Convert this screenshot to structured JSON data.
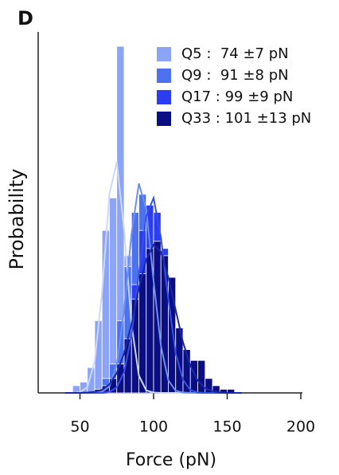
{
  "chart_data": {
    "type": "histogram",
    "panel_label": "D",
    "xlabel": "Force (pN)",
    "ylabel": "Probability",
    "xlim": [
      20,
      200
    ],
    "xticks": [
      50,
      100,
      150,
      200
    ],
    "ylim": [
      0,
      1
    ],
    "bins": [
      40,
      45,
      50,
      55,
      60,
      65,
      70,
      75,
      80,
      85,
      90,
      95,
      100,
      105,
      110,
      115,
      120,
      125,
      130,
      135,
      140,
      145,
      150,
      155,
      160
    ],
    "series": [
      {
        "name": "Q5 :  74 ±7 pN",
        "color": "#8ba4f5",
        "values": [
          0,
          0.02,
          0.03,
          0.07,
          0.2,
          0.45,
          0.54,
          0.96,
          0.38,
          0.1,
          0.03,
          0.01,
          0,
          0,
          0,
          0,
          0,
          0,
          0,
          0,
          0,
          0,
          0,
          0
        ],
        "curve": {
          "color": "#cdd8fa",
          "x": [
            40,
            45,
            50,
            55,
            60,
            65,
            70,
            75,
            80,
            85,
            90,
            95,
            100,
            105,
            110,
            115,
            120,
            125,
            130,
            135,
            140,
            145,
            150,
            155,
            160
          ],
          "values": [
            0,
            0,
            0.002,
            0.016,
            0.088,
            0.28,
            0.55,
            0.64,
            0.45,
            0.19,
            0.048,
            0.007,
            0.001,
            0,
            0,
            0,
            0,
            0,
            0,
            0,
            0,
            0,
            0,
            0,
            0
          ]
        }
      },
      {
        "name": "Q9 :  91 ±8 pN",
        "color": "#4d72ee",
        "values": [
          0,
          0,
          0,
          0,
          0.01,
          0.04,
          0.08,
          0.2,
          0.35,
          0.5,
          0.55,
          0.52,
          0.36,
          0.2,
          0.08,
          0.03,
          0.01,
          0,
          0,
          0,
          0,
          0,
          0,
          0
        ],
        "curve": {
          "color": "#6d8ff2",
          "x": [
            40,
            45,
            50,
            55,
            60,
            65,
            70,
            75,
            80,
            85,
            90,
            95,
            100,
            105,
            110,
            115,
            120,
            125,
            130,
            135,
            140,
            145,
            150,
            155,
            160
          ],
          "values": [
            0,
            0,
            0,
            0,
            0,
            0.003,
            0.018,
            0.078,
            0.23,
            0.44,
            0.58,
            0.51,
            0.31,
            0.13,
            0.035,
            0.006,
            0.001,
            0,
            0,
            0,
            0,
            0,
            0,
            0,
            0
          ]
        }
      },
      {
        "name": "Q17 : 99 ±9 pN",
        "color": "#2b3df0",
        "values": [
          0,
          0,
          0,
          0,
          0,
          0.01,
          0.03,
          0.06,
          0.15,
          0.3,
          0.45,
          0.52,
          0.5,
          0.4,
          0.28,
          0.15,
          0.07,
          0.02,
          0.01,
          0,
          0,
          0,
          0,
          0
        ],
        "curve": {
          "color": "#3550e6",
          "x": [
            40,
            45,
            50,
            55,
            60,
            65,
            70,
            75,
            80,
            85,
            90,
            95,
            100,
            105,
            110,
            115,
            120,
            125,
            130,
            135,
            140,
            145,
            150,
            155,
            160
          ],
          "values": [
            0,
            0,
            0,
            0,
            0,
            0,
            0.003,
            0.015,
            0.058,
            0.16,
            0.33,
            0.49,
            0.54,
            0.43,
            0.26,
            0.11,
            0.036,
            0.008,
            0.001,
            0,
            0,
            0,
            0,
            0,
            0
          ]
        }
      },
      {
        "name": "Q33 : 101 ±13 pN",
        "color": "#0a0e82",
        "values": [
          0,
          0,
          0,
          0,
          0.01,
          0.02,
          0.04,
          0.08,
          0.15,
          0.26,
          0.33,
          0.4,
          0.42,
          0.38,
          0.32,
          0.18,
          0.12,
          0.09,
          0.09,
          0.04,
          0.02,
          0.01,
          0.01,
          0
        ],
        "curve": {
          "color": "#1a28a8",
          "x": [
            40,
            45,
            50,
            55,
            60,
            65,
            70,
            75,
            80,
            85,
            90,
            95,
            100,
            105,
            110,
            115,
            120,
            125,
            130,
            135,
            140,
            145,
            150,
            155,
            160
          ],
          "values": [
            0,
            0,
            0,
            0.001,
            0.003,
            0.009,
            0.024,
            0.055,
            0.11,
            0.19,
            0.29,
            0.37,
            0.41,
            0.39,
            0.32,
            0.23,
            0.14,
            0.075,
            0.034,
            0.013,
            0.005,
            0.001,
            0,
            0,
            0
          ]
        }
      }
    ]
  }
}
